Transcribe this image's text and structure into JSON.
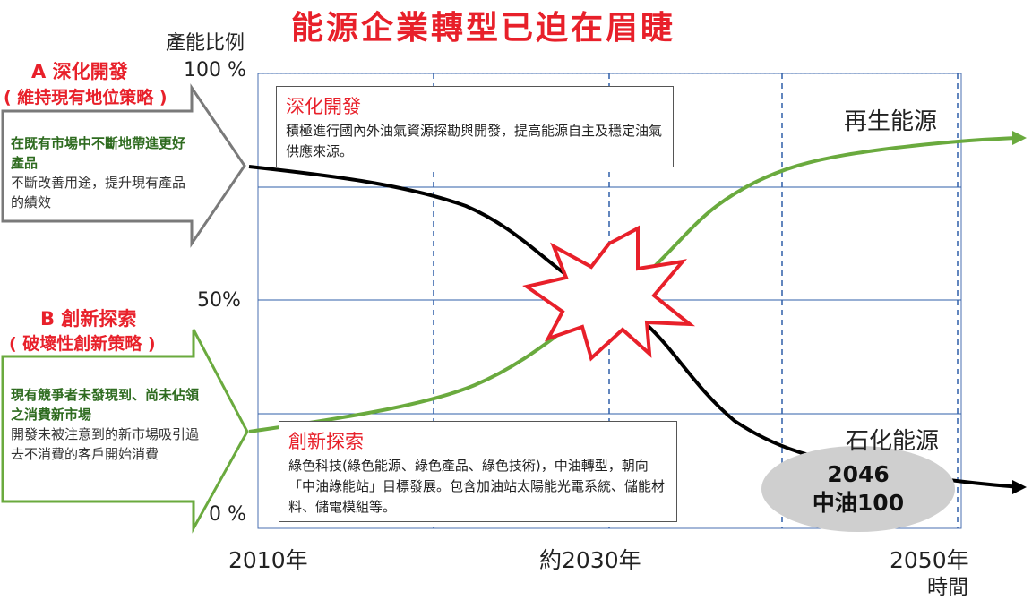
{
  "title": "能源企業轉型已迫在眉睫",
  "y_axis": {
    "label": "產能比例",
    "ticks": [
      "100 %",
      "50%",
      "0 %"
    ]
  },
  "x_axis": {
    "label": "時間",
    "ticks": [
      "2010年",
      "約2030年",
      "2050年"
    ]
  },
  "strategy_a": {
    "title": "A 深化開發",
    "subtitle": "( 維持現有地位策略 )",
    "bold_text": "在既有市場中不斷地帶進更好產品",
    "text": "不斷改善用途，提升現有產品的績效"
  },
  "strategy_b": {
    "title": "B 創新探索",
    "subtitle": "( 破壞性創新策略 )",
    "bold_text": "現有競爭者未發現到、尚未佔領之消費新市場",
    "text": "開發未被注意到的新市場吸引過去不消費的客戶開始消費"
  },
  "box_deepen": {
    "title": "深化開發",
    "body": "積極進行國內外油氣資源探勘與開發，提高能源自主及穩定油氣供應來源。"
  },
  "box_innovate": {
    "title": "創新探索",
    "body": "綠色科技(綠色能源、綠色產品、綠色技術)，中油轉型，朝向「中油綠能站」目標發展。包含加油站太陽能光電系統、儲能材料、儲電模組等。"
  },
  "curves": {
    "renewable_label": "再生能源",
    "fossil_label": "石化能源",
    "renewable_color": "#6aaa3e",
    "fossil_color": "#000000"
  },
  "badge": {
    "line1": "2046",
    "line2": "中油100"
  },
  "colors": {
    "accent_red": "#e8202a",
    "grid_blue": "#2f5fa8",
    "arrow_gray": "#7a7a7a",
    "arrow_green": "#6aaa3e"
  }
}
